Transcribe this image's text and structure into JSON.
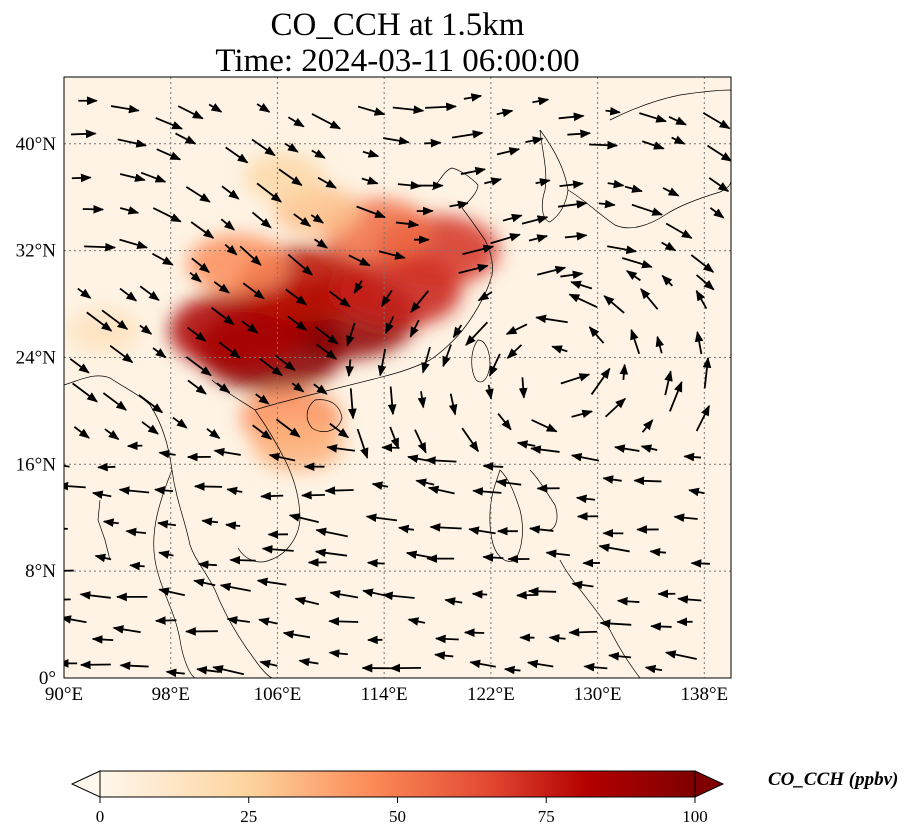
{
  "title": {
    "line1": "CO_CCH at 1.5km",
    "line2": "Time: 2024-03-11 06:00:00"
  },
  "map": {
    "variable": "CO_CCH",
    "level": "1.5km",
    "lon_range": [
      90,
      140
    ],
    "lat_range": [
      0,
      45
    ],
    "lon_ticks": [
      {
        "value": 90,
        "label": "90°E"
      },
      {
        "value": 98,
        "label": "98°E"
      },
      {
        "value": 106,
        "label": "106°E"
      },
      {
        "value": 114,
        "label": "114°E"
      },
      {
        "value": 122,
        "label": "122°E"
      },
      {
        "value": 130,
        "label": "130°E"
      },
      {
        "value": 138,
        "label": "138°E"
      }
    ],
    "lat_ticks": [
      {
        "value": 0,
        "label": "0°"
      },
      {
        "value": 8,
        "label": "8°N"
      },
      {
        "value": 16,
        "label": "16°N"
      },
      {
        "value": 24,
        "label": "24°N"
      },
      {
        "value": 32,
        "label": "32°N"
      },
      {
        "value": 40,
        "label": "40°N"
      }
    ],
    "gridlines": true,
    "colormap": {
      "name": "OrRd",
      "low": "#fff7ec",
      "mid": "#f26d4b",
      "high": "#7f0000"
    },
    "plumes": [
      {
        "lon": 111,
        "lat": 27,
        "value": 95
      },
      {
        "lon": 105.5,
        "lat": 24.6,
        "value": 98
      },
      {
        "lon": 103,
        "lat": 26,
        "value": 85
      },
      {
        "lon": 108,
        "lat": 29.5,
        "value": 80
      },
      {
        "lon": 115,
        "lat": 29,
        "value": 75
      },
      {
        "lon": 118,
        "lat": 32,
        "value": 70
      },
      {
        "lon": 113.5,
        "lat": 33.5,
        "value": 55
      },
      {
        "lon": 107,
        "lat": 19.5,
        "value": 45
      },
      {
        "lon": 107.5,
        "lat": 17.5,
        "value": 35
      },
      {
        "lon": 109,
        "lat": 35,
        "value": 30
      },
      {
        "lon": 106.5,
        "lat": 37.5,
        "value": 22
      },
      {
        "lon": 93,
        "lat": 26,
        "value": 15
      },
      {
        "lon": 103,
        "lat": 31,
        "value": 45
      }
    ],
    "wind_vectors_note": ""
  },
  "colorbar": {
    "label": "CO_CCH (ppbv)",
    "min": 0,
    "max": 100,
    "extend": "both",
    "ticks": [
      {
        "value": 0,
        "label": "0"
      },
      {
        "value": 25,
        "label": "25"
      },
      {
        "value": 50,
        "label": "50"
      },
      {
        "value": 75,
        "label": "75"
      },
      {
        "value": 100,
        "label": "100"
      }
    ]
  }
}
